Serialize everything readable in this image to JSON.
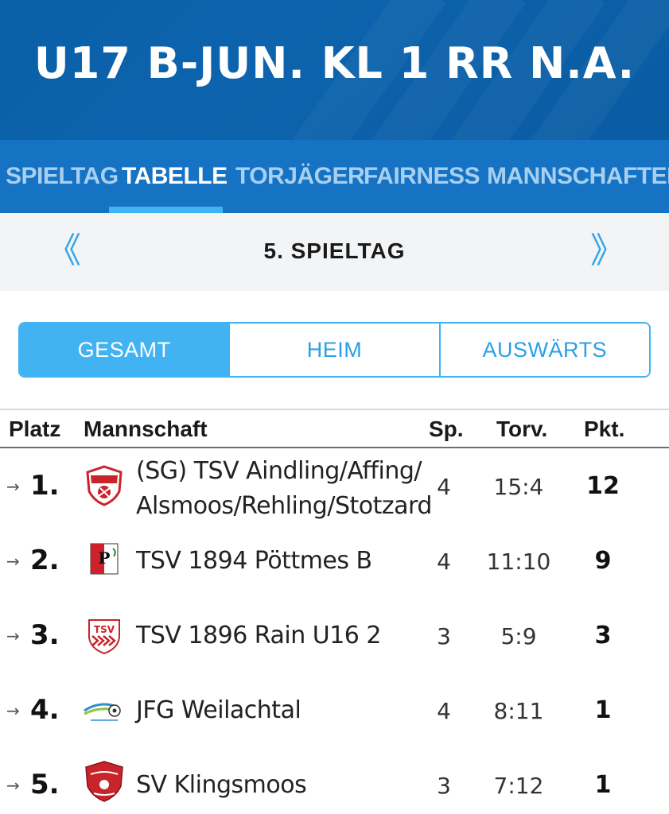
{
  "header": {
    "title": "U17 B-JUN. KL 1  RR  N.A."
  },
  "tabs": [
    {
      "label": "SPIELTAG",
      "active": false
    },
    {
      "label": "TABELLE",
      "active": true
    },
    {
      "label": "TORJÄGER",
      "active": false
    },
    {
      "label": "FAIRNESS",
      "active": false
    },
    {
      "label": "MANNSCHAFTEN",
      "active": false
    }
  ],
  "matchday": {
    "title": "5. SPIELTAG",
    "prev_icon": "chevron-double-left-icon",
    "next_icon": "chevron-double-right-icon"
  },
  "segments": [
    {
      "label": "GESAMT",
      "active": true
    },
    {
      "label": "HEIM",
      "active": false
    },
    {
      "label": "AUSWÄRTS",
      "active": false
    }
  ],
  "table": {
    "headers": {
      "place": "Platz",
      "team": "Mannschaft",
      "games": "Sp.",
      "goals": "Torv.",
      "points": "Pkt."
    },
    "rows": [
      {
        "trend": "→",
        "place": "1.",
        "team_line1": "(SG) TSV Aindling/Affing/",
        "team_line2": "Alsmoos/Rehling/Stotzard",
        "games": "4",
        "goals": "15:4",
        "points": "12"
      },
      {
        "trend": "→",
        "place": "2.",
        "team_line1": "TSV 1894 Pöttmes B",
        "team_line2": "",
        "games": "4",
        "goals": "11:10",
        "points": "9"
      },
      {
        "trend": "→",
        "place": "3.",
        "team_line1": "TSV 1896 Rain U16 2",
        "team_line2": "",
        "games": "3",
        "goals": "5:9",
        "points": "3"
      },
      {
        "trend": "→",
        "place": "4.",
        "team_line1": "JFG Weilachtal",
        "team_line2": "",
        "games": "4",
        "goals": "8:11",
        "points": "1"
      },
      {
        "trend": "→",
        "place": "5.",
        "team_line1": "SV Klingsmoos",
        "team_line2": "",
        "games": "3",
        "goals": "7:12",
        "points": "1"
      }
    ]
  },
  "colors": {
    "header_bg": "#0a5fa8",
    "tabs_bg": "#1673c4",
    "accent": "#41b3f2",
    "inactive_tab": "#a9cff0"
  }
}
